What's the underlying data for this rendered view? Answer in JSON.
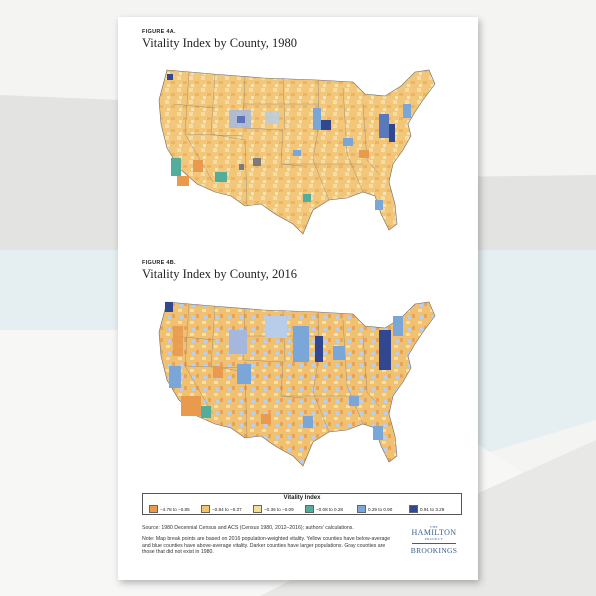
{
  "figure_a": {
    "label": "FIGURE 4A.",
    "title": "Vitality Index by County, 1980"
  },
  "figure_b": {
    "label": "FIGURE 4B.",
    "title": "Vitality Index by County, 2016"
  },
  "legend": {
    "title": "Vitality Index",
    "items": [
      {
        "label": "−4.78 to −0.85",
        "color": "#e99a4d"
      },
      {
        "label": "−0.84 to −0.37",
        "color": "#f4c267"
      },
      {
        "label": "−0.36 to −0.09",
        "color": "#f1dfa0"
      },
      {
        "label": "−0.08 to 0.28",
        "color": "#52ad9b"
      },
      {
        "label": "0.29 to 0.90",
        "color": "#7ba6d8"
      },
      {
        "label": "0.91 to 3.29",
        "color": "#31478f"
      }
    ]
  },
  "source": "Source: 1980 Decennial Census and ACS (Census 1980, 2012–2016); authors' calculations.",
  "note": "Note: Map break points are based on 2016 population-weighted vitality. Yellow counties have below-average and blue counties have above-average vitality. Darker counties have larger populations. Gray counties are those that did not exist in 1980.",
  "logo": {
    "the": "THE",
    "hamilton": "HAMILTON",
    "project": "PROJECT",
    "brookings": "BROOKINGS"
  }
}
